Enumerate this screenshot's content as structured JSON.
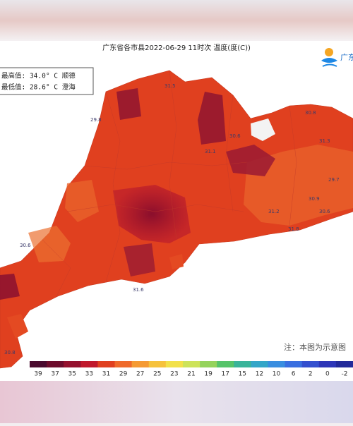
{
  "header": {
    "title": "广东省各市县2022-06-29 11时次 温度(度(C))",
    "logo": "广东"
  },
  "stats": [
    "最高值: 34.0° C 顺德",
    "最低值: 28.6° C 澄海"
  ],
  "map": {
    "labels": [
      "31.5",
      "29.8",
      "30.6",
      "31.1",
      "30.8",
      "31.3",
      "29.7",
      "30.6",
      "31.8",
      "30.6",
      "31.6",
      "30.8",
      "31.2",
      "30.9"
    ]
  },
  "note": "注：本图为示意图",
  "legend": {
    "labels": [
      39,
      37,
      35,
      33,
      31,
      29,
      27,
      25,
      23,
      21,
      19,
      17,
      15,
      12,
      10,
      6,
      2,
      0,
      -2
    ]
  }
}
